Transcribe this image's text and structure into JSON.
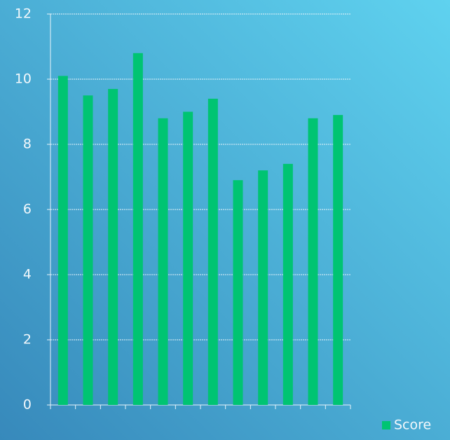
{
  "chart_data": {
    "type": "bar",
    "categories": [
      null,
      null,
      null,
      null,
      null,
      null,
      null,
      null,
      null,
      null,
      null,
      null
    ],
    "series": [
      {
        "name": "Score",
        "color": "#00c472",
        "values": [
          10.1,
          9.5,
          9.7,
          10.8,
          8.8,
          9.0,
          9.4,
          6.9,
          7.2,
          7.4,
          8.8,
          8.9
        ]
      }
    ],
    "ylim": [
      0,
      12
    ],
    "yticks": [
      0,
      2,
      4,
      6,
      8,
      10,
      12
    ],
    "grid": true,
    "legend": "bottom-right"
  }
}
